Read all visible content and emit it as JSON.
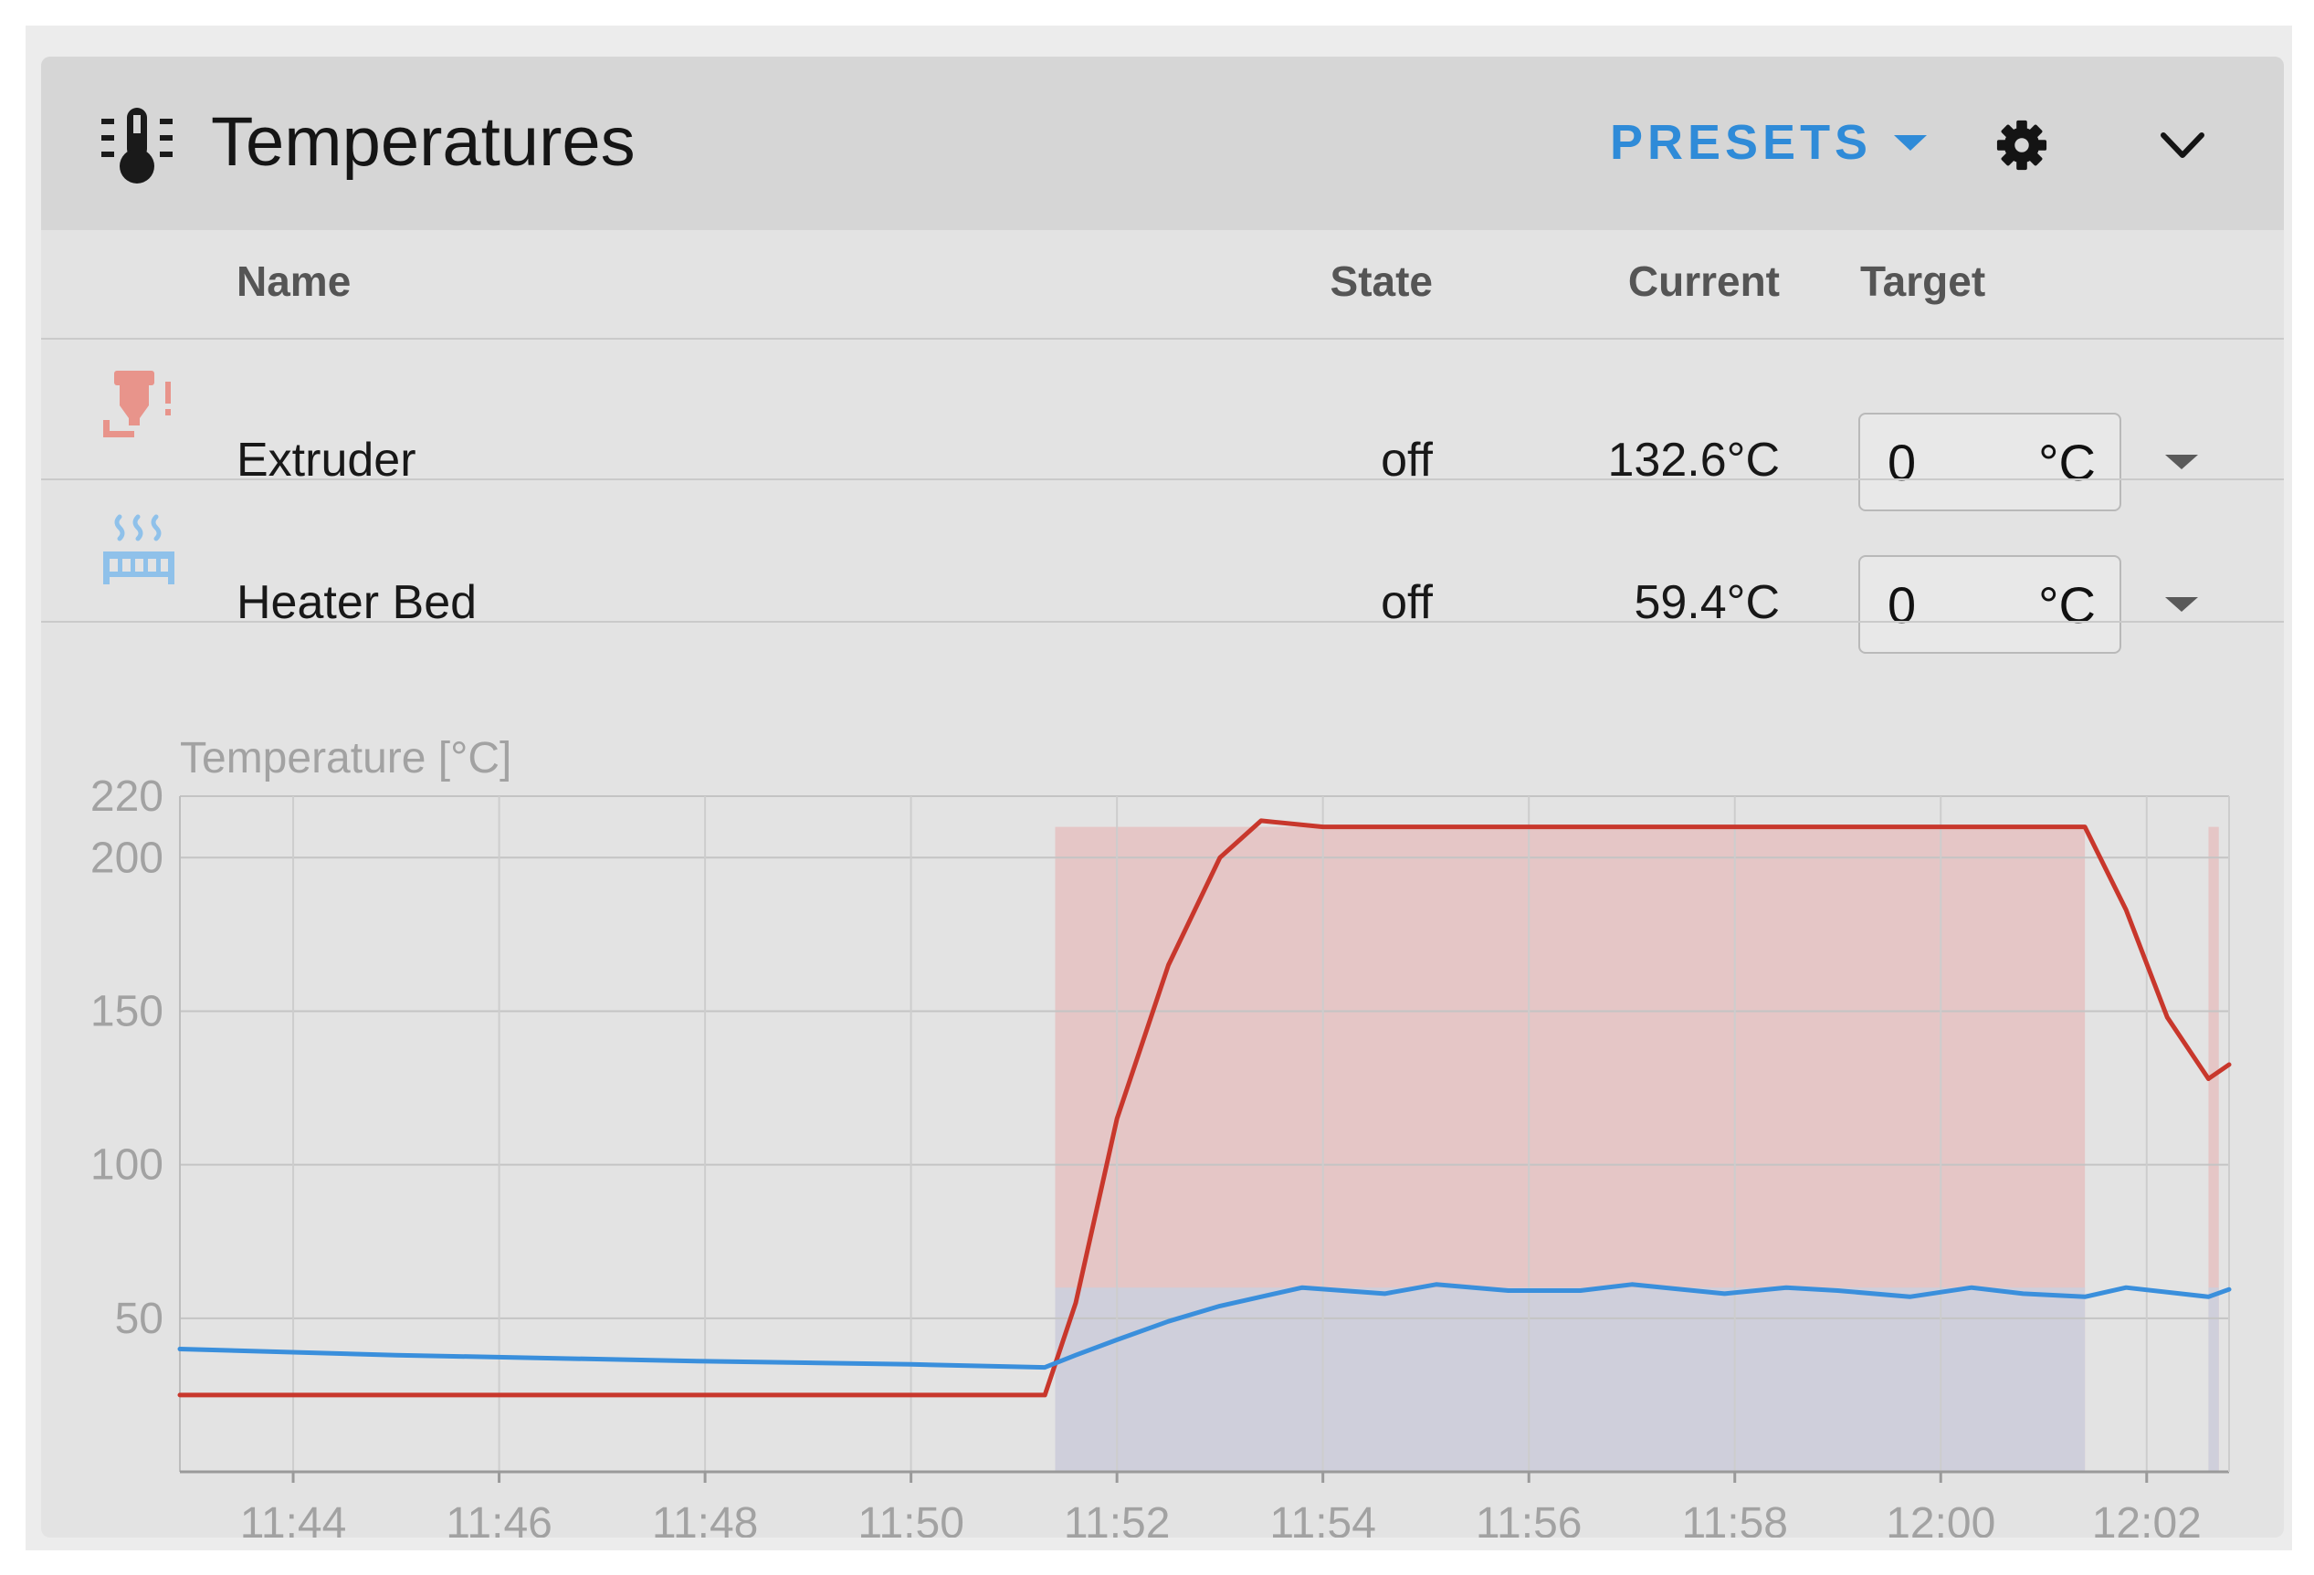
{
  "panel": {
    "title": "Temperatures",
    "presets_label": "PRESETS",
    "icons": {
      "title": "thermometer-icon",
      "presets_caret": "caret-down-icon",
      "settings": "gear-icon",
      "collapse": "chevron-down-icon"
    }
  },
  "table": {
    "headers": {
      "name": "Name",
      "state": "State",
      "current": "Current",
      "target": "Target"
    },
    "rows": [
      {
        "icon": "extruder-icon",
        "name": "Extruder",
        "state": "off",
        "current": "132.6°C",
        "target": "0",
        "unit": "°C"
      },
      {
        "icon": "heater-bed-icon",
        "name": "Heater Bed",
        "state": "off",
        "current": "59.4°C",
        "target": "0",
        "unit": "°C"
      }
    ]
  },
  "colors": {
    "extruder": "#c8372c",
    "bed": "#3a8fdc",
    "extruder_target_fill": "#e5c6c6",
    "bed_target_fill": "#cfcfdb"
  },
  "chart_data": {
    "type": "line",
    "ylabel": "Temperature [°C]",
    "ylim": [
      0,
      220
    ],
    "yticks": [
      50,
      100,
      150,
      200,
      220
    ],
    "xlim": [
      "11:42:54",
      "12:02:48"
    ],
    "xticks": [
      "11:44",
      "11:46",
      "11:48",
      "11:50",
      "11:52",
      "11:54",
      "11:56",
      "11:58",
      "12:00",
      "12:02"
    ],
    "grid": true,
    "series": [
      {
        "key": "extruder",
        "x": [
          "11:42:54",
          "11:45:00",
          "11:48:00",
          "11:50:00",
          "11:51:18",
          "11:51:36",
          "11:52:00",
          "11:52:30",
          "11:53:00",
          "11:53:24",
          "11:54:00",
          "11:56:00",
          "11:58:00",
          "12:00:00",
          "12:01:24",
          "12:01:48",
          "12:02:12",
          "12:02:36",
          "12:02:48"
        ],
        "y": [
          25,
          25,
          25,
          25,
          25,
          55,
          115,
          165,
          200,
          212,
          210,
          210,
          210,
          210,
          210,
          183,
          148,
          128,
          132.6
        ]
      },
      {
        "key": "bed",
        "x": [
          "11:42:54",
          "11:45:00",
          "11:48:00",
          "11:50:00",
          "11:51:18",
          "11:51:36",
          "11:52:00",
          "11:52:30",
          "11:53:00",
          "11:53:48",
          "11:54:36",
          "11:55:06",
          "11:55:48",
          "11:56:30",
          "11:57:00",
          "11:57:54",
          "11:58:30",
          "11:59:00",
          "11:59:42",
          "12:00:18",
          "12:00:48",
          "12:01:24",
          "12:01:48",
          "12:02:36",
          "12:02:48"
        ],
        "y": [
          40,
          38,
          36,
          35,
          34,
          38,
          43,
          49,
          54,
          60,
          58,
          61,
          59,
          59,
          61,
          58,
          60,
          59,
          57,
          60,
          58,
          57,
          60,
          57,
          59.4
        ]
      }
    ],
    "target_bands": [
      {
        "key": "extruder",
        "segments": [
          {
            "from": "11:51:24",
            "to": "12:01:24",
            "value": 210
          },
          {
            "from": "12:02:36",
            "to": "12:02:42",
            "value": 210
          }
        ]
      },
      {
        "key": "bed",
        "segments": [
          {
            "from": "11:51:24",
            "to": "12:01:24",
            "value": 60
          },
          {
            "from": "12:02:36",
            "to": "12:02:42",
            "value": 60
          }
        ]
      }
    ]
  }
}
